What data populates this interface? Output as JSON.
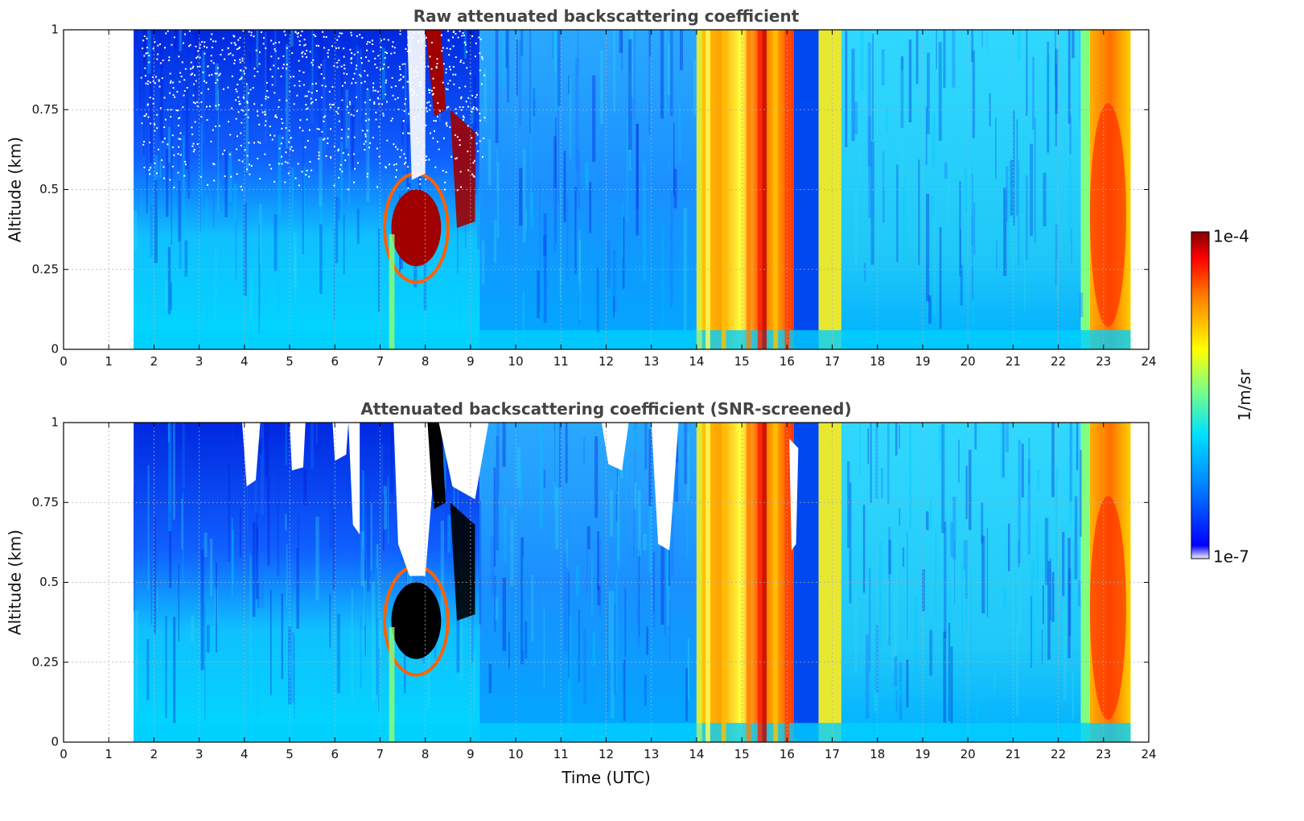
{
  "chart_data": [
    {
      "type": "heatmap",
      "title": "Raw attenuated backscattering coefficient",
      "xlabel": "",
      "ylabel": "Altitude (km)",
      "xlim": [
        0,
        24
      ],
      "ylim": [
        0,
        1
      ],
      "x_ticks": [
        "0",
        "1",
        "2",
        "3",
        "4",
        "5",
        "6",
        "7",
        "8",
        "9",
        "10",
        "11",
        "12",
        "13",
        "14",
        "15",
        "16",
        "17",
        "18",
        "19",
        "20",
        "21",
        "22",
        "23",
        "24"
      ],
      "y_ticks": [
        "0",
        "0.25",
        "0.5",
        "0.75",
        "1"
      ],
      "y_tick_values": [
        0,
        0.25,
        0.5,
        0.75,
        1
      ],
      "grid": true,
      "data_time_range": [
        1.55,
        23.6
      ],
      "screened": false,
      "key_features": [
        {
          "feature": "high backscatter cloud layer",
          "time": [
            7.2,
            8.2
          ],
          "altitude": [
            0.3,
            0.45
          ]
        },
        {
          "feature": "elevated cloud filaments",
          "time": [
            8.0,
            9.2
          ],
          "altitude": [
            0.4,
            1.0
          ]
        },
        {
          "feature": "strong backscatter column",
          "time": [
            14.0,
            16.1
          ],
          "altitude": [
            0,
            1
          ]
        },
        {
          "feature": "moderate backscatter column",
          "time": [
            16.7,
            17.2
          ],
          "altitude": [
            0,
            1
          ]
        },
        {
          "feature": "high backscatter column",
          "time": [
            22.6,
            23.6
          ],
          "altitude": [
            0,
            1
          ]
        }
      ]
    },
    {
      "type": "heatmap",
      "title": "Attenuated backscattering coefficient (SNR-screened)",
      "xlabel": "Time (UTC)",
      "ylabel": "Altitude (km)",
      "xlim": [
        0,
        24
      ],
      "ylim": [
        0,
        1
      ],
      "x_ticks": [
        "0",
        "1",
        "2",
        "3",
        "4",
        "5",
        "6",
        "7",
        "8",
        "9",
        "10",
        "11",
        "12",
        "13",
        "14",
        "15",
        "16",
        "17",
        "18",
        "19",
        "20",
        "21",
        "22",
        "23",
        "24"
      ],
      "y_ticks": [
        "0",
        "0.25",
        "0.5",
        "0.75",
        "1"
      ],
      "y_tick_values": [
        0,
        0.25,
        0.5,
        0.75,
        1
      ],
      "grid": true,
      "data_time_range": [
        1.55,
        23.6
      ],
      "screened": true
    }
  ],
  "colorbar": {
    "label": "1/m/sr",
    "max_label": "1e-4",
    "min_label": "1e-7",
    "scale": "log",
    "range": [
      1e-07,
      0.0001
    ],
    "colormap": "jet",
    "colors": [
      "#f0f0ff",
      "#0000ff",
      "#0080ff",
      "#00e0ff",
      "#80ff80",
      "#ffff00",
      "#ff8000",
      "#ff0000",
      "#800000"
    ]
  }
}
